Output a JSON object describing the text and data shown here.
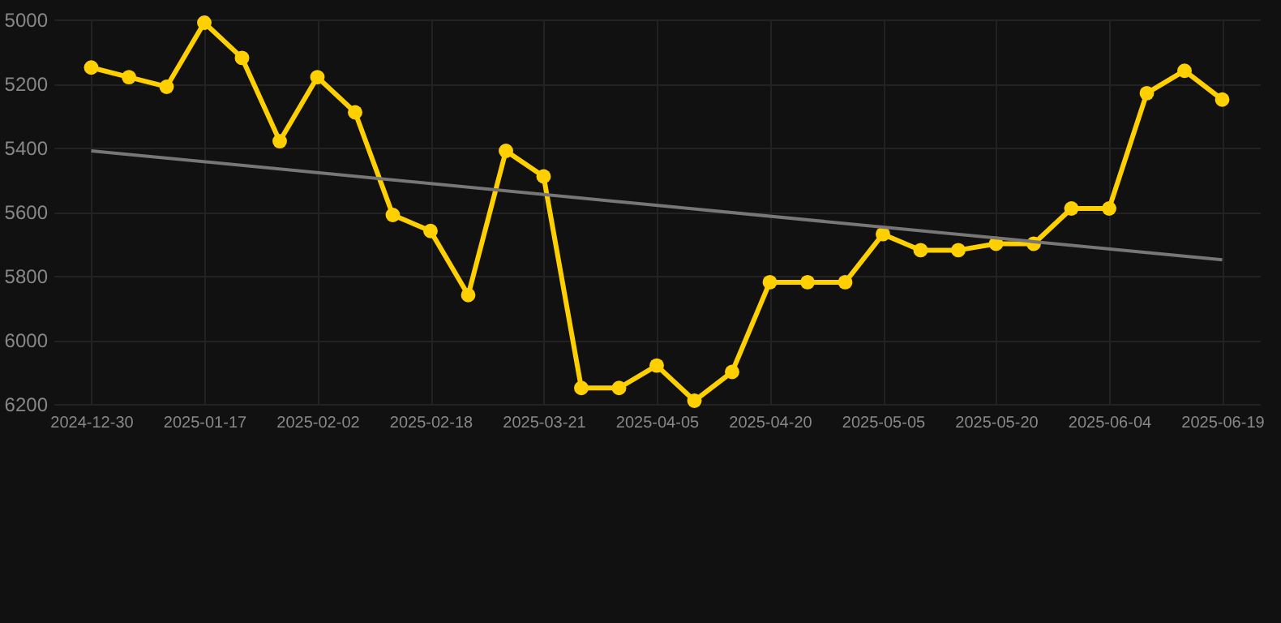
{
  "chart_data": {
    "type": "line",
    "categories": [
      "2024-12-30",
      null,
      null,
      "2025-01-17",
      null,
      null,
      "2025-02-02",
      null,
      null,
      "2025-02-18",
      null,
      null,
      "2025-03-21",
      null,
      null,
      "2025-04-05",
      null,
      null,
      "2025-04-20",
      null,
      null,
      "2025-05-05",
      null,
      null,
      "2025-05-20",
      null,
      null,
      "2025-06-04",
      null,
      null,
      "2025-06-19"
    ],
    "series": [
      {
        "color": "#ffd000",
        "marker": "circle",
        "values": [
          5150,
          5180,
          5210,
          5010,
          5120,
          5380,
          5180,
          5290,
          5610,
          5660,
          5860,
          5410,
          5490,
          6150,
          6150,
          6080,
          6190,
          6100,
          5820,
          5820,
          5820,
          5670,
          5720,
          5720,
          5700,
          5700,
          5590,
          5590,
          5230,
          5160,
          5250
        ]
      },
      {
        "type": "line",
        "color": "#777777",
        "marker": "none",
        "values": [
          5410,
          null,
          null,
          null,
          null,
          null,
          null,
          null,
          null,
          null,
          null,
          null,
          null,
          null,
          null,
          null,
          null,
          null,
          null,
          null,
          null,
          null,
          null,
          null,
          null,
          null,
          null,
          null,
          null,
          null,
          5750
        ]
      }
    ],
    "ylim": [
      6200,
      5000
    ],
    "yticks": [
      5000,
      5200,
      5400,
      5600,
      5800,
      6000,
      6200
    ],
    "grid": true
  }
}
